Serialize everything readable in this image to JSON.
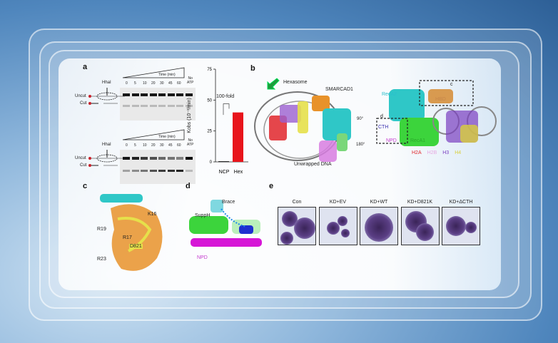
{
  "panels": {
    "a": {
      "label": "a",
      "time_label": "Time (min)",
      "lanes": [
        "0",
        "5",
        "10",
        "20",
        "30",
        "45",
        "60"
      ],
      "no_atp": [
        "No",
        "ATP"
      ],
      "enzyme": "HhaI",
      "uncut": "Uncut",
      "cut": "Cut"
    },
    "b": {
      "label": "b",
      "hexasome": "Hexasome",
      "smarcad1": "SMARCAD1",
      "unwrapped": "Unwrapped DNA",
      "rot90": "90°",
      "rot180": "180°",
      "reca2": "RecA2",
      "reca1": "RecA1",
      "hbd": "HBD",
      "cth": "CTH",
      "npd": "NPD",
      "box_c": "c",
      "box_d": "d",
      "histones": [
        {
          "name": "H2A",
          "color": "#e0262b"
        },
        {
          "name": "H2B",
          "color": "#e7a6e0"
        },
        {
          "name": "H3",
          "color": "#7a3fc0"
        },
        {
          "name": "H4",
          "color": "#d9cf3a"
        }
      ]
    },
    "c": {
      "label": "c",
      "residues": [
        "K16",
        "R19",
        "R17",
        "D821",
        "R23"
      ]
    },
    "d": {
      "label": "d",
      "brace": "Brace",
      "supph": "SuppH",
      "npd": "NPD"
    },
    "e": {
      "label": "e",
      "conditions": [
        "Con",
        "KD+EV",
        "KD+WT",
        "KD+D821K",
        "KD+ΔCTH"
      ]
    }
  },
  "chart_data": {
    "type": "bar",
    "categories": [
      "NCP",
      "Hex"
    ],
    "values": [
      0.5,
      40
    ],
    "ylabel": "Kobs (10⁻³/min)",
    "ylim": [
      0,
      75
    ],
    "yticks": [
      "0",
      "25",
      "50",
      "75"
    ],
    "annotation": "100-fold",
    "bar_colors": [
      "#111111",
      "#e8141b"
    ]
  }
}
